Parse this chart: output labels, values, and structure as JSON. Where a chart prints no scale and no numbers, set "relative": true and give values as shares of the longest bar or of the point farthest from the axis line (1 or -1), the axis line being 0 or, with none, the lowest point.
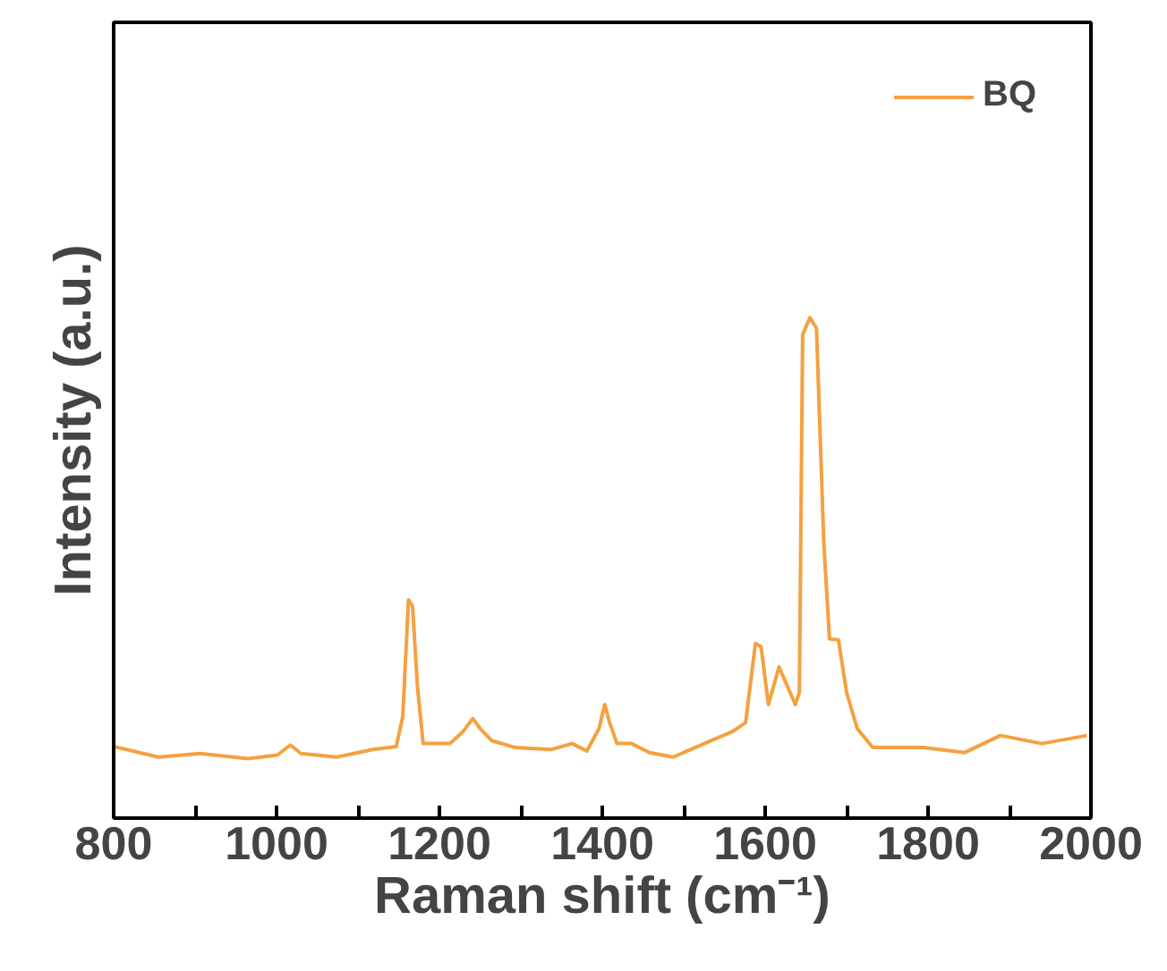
{
  "chart_data": {
    "type": "line",
    "xlabel": "Raman shift (cm⁻¹)",
    "ylabel": "Intensity (a.u.)",
    "relative": true,
    "xlim": [
      800,
      2000
    ],
    "xticks": [
      800,
      {
        "value": 900,
        "label": null
      },
      1000,
      {
        "value": 1100,
        "label": null
      },
      1200,
      {
        "value": 1300,
        "label": null
      },
      1400,
      {
        "value": 1500,
        "label": null
      },
      1600,
      {
        "value": 1700,
        "label": null
      },
      1800,
      {
        "value": 1900,
        "label": null
      },
      2000
    ],
    "legend": "top right",
    "grid": false,
    "series": [
      {
        "name": "BQ",
        "color": "#f4a140",
        "x": [
          800,
          855,
          906,
          965,
          1001,
          1017,
          1030,
          1074,
          1118,
          1147,
          1155,
          1162,
          1167,
          1173,
          1180,
          1213,
          1229,
          1241,
          1250,
          1264,
          1293,
          1337,
          1363,
          1381,
          1396,
          1403,
          1409,
          1418,
          1436,
          1458,
          1487,
          1531,
          1560,
          1576,
          1588,
          1595,
          1604,
          1617,
          1637,
          1642,
          1646,
          1655,
          1663,
          1672,
          1679,
          1690,
          1700,
          1713,
          1732,
          1794,
          1845,
          1889,
          1940,
          1995
        ],
        "values": [
          0.143,
          0.122,
          0.129,
          0.119,
          0.126,
          0.146,
          0.129,
          0.122,
          0.137,
          0.143,
          0.203,
          0.436,
          0.424,
          0.263,
          0.149,
          0.149,
          0.173,
          0.199,
          0.179,
          0.155,
          0.141,
          0.137,
          0.149,
          0.134,
          0.179,
          0.227,
          0.191,
          0.149,
          0.149,
          0.131,
          0.122,
          0.153,
          0.173,
          0.191,
          0.349,
          0.342,
          0.227,
          0.302,
          0.227,
          0.251,
          0.966,
          1.0,
          0.979,
          0.549,
          0.358,
          0.356,
          0.251,
          0.179,
          0.141,
          0.141,
          0.131,
          0.165,
          0.149,
          0.165
        ]
      }
    ]
  }
}
